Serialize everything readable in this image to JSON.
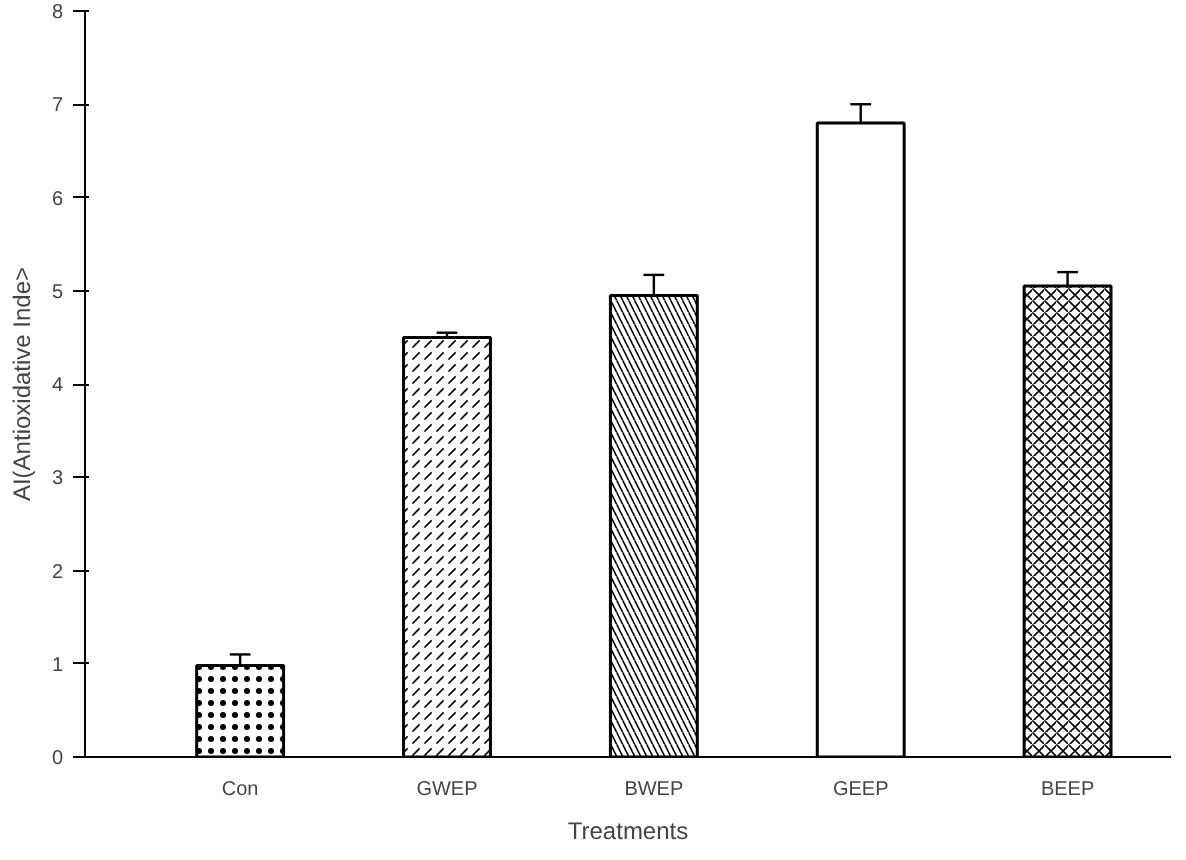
{
  "chart_data": {
    "type": "bar",
    "xlabel": "Treatments",
    "ylabel": "AI(Antioxidative Inde>",
    "categories": [
      "Con",
      "GWEP",
      "BWEP",
      "GEEP",
      "BEEP"
    ],
    "values": [
      0.98,
      4.5,
      4.95,
      6.8,
      5.05
    ],
    "errors": [
      0.12,
      0.05,
      0.22,
      0.2,
      0.15
    ],
    "color": "#ffffff",
    "ylim": [
      0,
      8
    ],
    "yticks": [
      0,
      1,
      2,
      3,
      4,
      5,
      6,
      7,
      8
    ],
    "grid": false
  }
}
